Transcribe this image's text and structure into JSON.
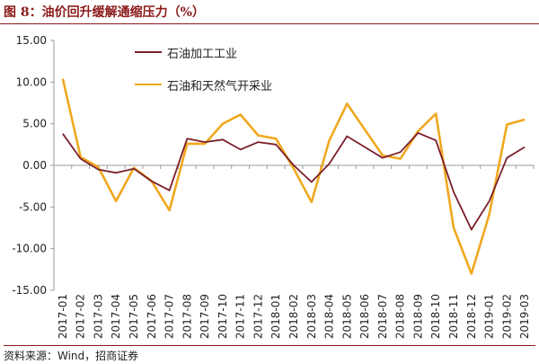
{
  "title": "图 8：油价回升缓解通缩压力（%）",
  "source": "资料来源：Wind，招商证券",
  "colors": {
    "series1": "#7B1F2A",
    "series2": "#F0A81E",
    "axis": "#999999",
    "accent": "#8B1A1A"
  },
  "chart_data": {
    "type": "line",
    "x": [
      "2017-01",
      "2017-02",
      "2017-03",
      "2017-04",
      "2017-05",
      "2017-06",
      "2017-07",
      "2017-08",
      "2017-09",
      "2017-10",
      "2017-11",
      "2017-12",
      "2018-01",
      "2018-02",
      "2018-03",
      "2018-04",
      "2018-05",
      "2018-06",
      "2018-07",
      "2018-08",
      "2018-09",
      "2018-10",
      "2018-11",
      "2018-12",
      "2019-01",
      "2019-02",
      "2019-03"
    ],
    "ylim": [
      -15,
      15
    ],
    "yticks": [
      "15.00",
      "10.00",
      "5.00",
      "0.00",
      "-5.00",
      "-10.00",
      "-15.00"
    ],
    "legend_position": "top-left",
    "grid": false,
    "series": [
      {
        "name": "石油加工工业",
        "values": [
          3.8,
          0.8,
          -0.5,
          -0.9,
          -0.4,
          -1.9,
          -3.0,
          3.2,
          2.8,
          3.1,
          1.9,
          2.8,
          2.5,
          0.0,
          -2.0,
          0.2,
          3.5,
          2.2,
          0.9,
          1.6,
          3.9,
          3.0,
          -3.2,
          -7.7,
          -4.3,
          0.9,
          2.2
        ]
      },
      {
        "name": "石油和天然气开采业",
        "values": [
          10.4,
          1.0,
          -0.2,
          -4.3,
          -0.3,
          -1.9,
          -5.4,
          2.6,
          2.6,
          5.0,
          6.1,
          3.6,
          3.2,
          -0.4,
          -4.4,
          3.0,
          7.4,
          4.3,
          1.2,
          0.8,
          4.1,
          6.2,
          -7.5,
          -13.0,
          -5.9,
          4.9,
          5.5
        ]
      }
    ]
  }
}
